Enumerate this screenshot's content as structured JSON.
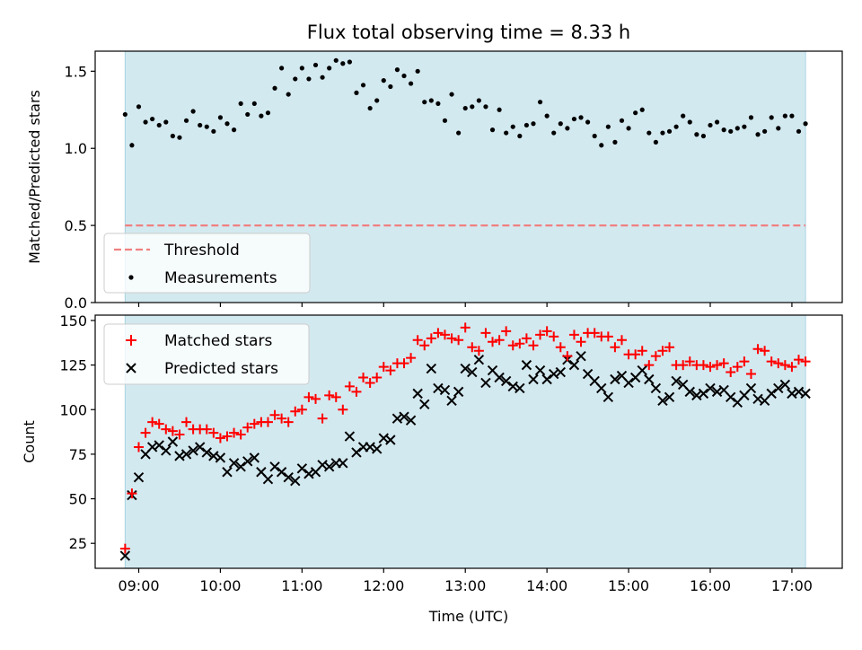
{
  "chart_data": [
    {
      "type": "scatter",
      "title": "Flux total observing time = 8.33 h",
      "xlabel": "",
      "ylabel": "Matched/Predicted stars",
      "xlim": [
        "08:28",
        "17:37"
      ],
      "ylim": [
        0,
        1.63
      ],
      "yticks": [
        0.0,
        0.5,
        1.0,
        1.5
      ],
      "ytick_labels": [
        "0.0",
        "0.5",
        "1.0",
        "1.5"
      ],
      "observing_window": [
        "08:50",
        "17:10"
      ],
      "shade_color": "#d3e9f0",
      "threshold": {
        "name": "Threshold",
        "value": 0.5,
        "color": "#f08080",
        "style": "dashed"
      },
      "legend": {
        "placement": "lower-left",
        "entries": [
          "Threshold",
          "Measurements"
        ]
      },
      "series": [
        {
          "name": "Measurements",
          "color": "#000000",
          "marker": "dot",
          "x": [
            "08:50",
            "08:55",
            "09:00",
            "09:05",
            "09:10",
            "09:15",
            "09:20",
            "09:25",
            "09:30",
            "09:35",
            "09:40",
            "09:45",
            "09:50",
            "09:55",
            "10:00",
            "10:05",
            "10:10",
            "10:15",
            "10:20",
            "10:25",
            "10:30",
            "10:35",
            "10:40",
            "10:45",
            "10:50",
            "10:55",
            "11:00",
            "11:05",
            "11:10",
            "11:15",
            "11:20",
            "11:25",
            "11:30",
            "11:35",
            "11:40",
            "11:45",
            "11:50",
            "11:55",
            "12:00",
            "12:05",
            "12:10",
            "12:15",
            "12:20",
            "12:25",
            "12:30",
            "12:35",
            "12:40",
            "12:45",
            "12:50",
            "12:55",
            "13:00",
            "13:05",
            "13:10",
            "13:15",
            "13:20",
            "13:25",
            "13:30",
            "13:35",
            "13:40",
            "13:45",
            "13:50",
            "13:55",
            "14:00",
            "14:05",
            "14:10",
            "14:15",
            "14:20",
            "14:25",
            "14:30",
            "14:35",
            "14:40",
            "14:45",
            "14:50",
            "14:55",
            "15:00",
            "15:05",
            "15:10",
            "15:15",
            "15:20",
            "15:25",
            "15:30",
            "15:35",
            "15:40",
            "15:45",
            "15:50",
            "15:55",
            "16:00",
            "16:05",
            "16:10",
            "16:15",
            "16:20",
            "16:25",
            "16:30",
            "16:35",
            "16:40",
            "16:45",
            "16:50",
            "16:55",
            "17:00",
            "17:05",
            "17:10"
          ],
          "y": [
            1.22,
            1.02,
            1.27,
            1.17,
            1.19,
            1.15,
            1.17,
            1.08,
            1.07,
            1.18,
            1.24,
            1.15,
            1.14,
            1.11,
            1.2,
            1.16,
            1.12,
            1.29,
            1.22,
            1.29,
            1.21,
            1.23,
            1.39,
            1.52,
            1.35,
            1.45,
            1.52,
            1.45,
            1.54,
            1.46,
            1.52,
            1.57,
            1.55,
            1.56,
            1.36,
            1.41,
            1.26,
            1.31,
            1.44,
            1.4,
            1.51,
            1.47,
            1.42,
            1.5,
            1.3,
            1.31,
            1.29,
            1.18,
            1.35,
            1.1,
            1.26,
            1.27,
            1.31,
            1.27,
            1.12,
            1.25,
            1.1,
            1.14,
            1.08,
            1.15,
            1.16,
            1.3,
            1.21,
            1.1,
            1.16,
            1.13,
            1.19,
            1.2,
            1.17,
            1.08,
            1.02,
            1.14,
            1.04,
            1.18,
            1.13,
            1.23,
            1.25,
            1.1,
            1.04,
            1.1,
            1.11,
            1.14,
            1.21,
            1.17,
            1.09,
            1.08,
            1.15,
            1.17,
            1.12,
            1.11,
            1.13,
            1.14,
            1.2,
            1.09,
            1.11,
            1.2,
            1.13,
            1.21,
            1.21,
            1.11,
            1.16
          ]
        }
      ]
    },
    {
      "type": "scatter",
      "title": "",
      "xlabel": "Time (UTC)",
      "ylabel": "Count",
      "xlim": [
        "08:28",
        "17:37"
      ],
      "ylim": [
        11,
        153
      ],
      "yticks": [
        25,
        50,
        75,
        100,
        125,
        150
      ],
      "ytick_labels": [
        "25",
        "50",
        "75",
        "100",
        "125",
        "150"
      ],
      "xticks": [
        "09:00",
        "10:00",
        "11:00",
        "12:00",
        "13:00",
        "14:00",
        "15:00",
        "16:00",
        "17:00"
      ],
      "xtick_labels": [
        "09:00",
        "10:00",
        "11:00",
        "12:00",
        "13:00",
        "14:00",
        "15:00",
        "16:00",
        "17:00"
      ],
      "observing_window": [
        "08:50",
        "17:10"
      ],
      "shade_color": "#d3e9f0",
      "legend": {
        "placement": "top-left",
        "entries": [
          "Matched stars",
          "Predicted stars"
        ]
      },
      "series": [
        {
          "name": "Matched stars",
          "color": "#ff0000",
          "marker": "plus",
          "x": [
            "08:50",
            "08:55",
            "09:00",
            "09:05",
            "09:10",
            "09:15",
            "09:20",
            "09:25",
            "09:30",
            "09:35",
            "09:40",
            "09:45",
            "09:50",
            "09:55",
            "10:00",
            "10:05",
            "10:10",
            "10:15",
            "10:20",
            "10:25",
            "10:30",
            "10:35",
            "10:40",
            "10:45",
            "10:50",
            "10:55",
            "11:00",
            "11:05",
            "11:10",
            "11:15",
            "11:20",
            "11:25",
            "11:30",
            "11:35",
            "11:40",
            "11:45",
            "11:50",
            "11:55",
            "12:00",
            "12:05",
            "12:10",
            "12:15",
            "12:20",
            "12:25",
            "12:30",
            "12:35",
            "12:40",
            "12:45",
            "12:50",
            "12:55",
            "13:00",
            "13:05",
            "13:10",
            "13:15",
            "13:20",
            "13:25",
            "13:30",
            "13:35",
            "13:40",
            "13:45",
            "13:50",
            "13:55",
            "14:00",
            "14:05",
            "14:10",
            "14:15",
            "14:20",
            "14:25",
            "14:30",
            "14:35",
            "14:40",
            "14:45",
            "14:50",
            "14:55",
            "15:00",
            "15:05",
            "15:10",
            "15:15",
            "15:20",
            "15:25",
            "15:30",
            "15:35",
            "15:40",
            "15:45",
            "15:50",
            "15:55",
            "16:00",
            "16:05",
            "16:10",
            "16:15",
            "16:20",
            "16:25",
            "16:30",
            "16:35",
            "16:40",
            "16:45",
            "16:50",
            "16:55",
            "17:00",
            "17:05",
            "17:10"
          ],
          "y": [
            22,
            53,
            79,
            87,
            93,
            92,
            89,
            88,
            86,
            93,
            89,
            89,
            89,
            87,
            84,
            85,
            87,
            86,
            90,
            92,
            93,
            93,
            97,
            95,
            93,
            99,
            100,
            107,
            106,
            95,
            108,
            107,
            100,
            113,
            110,
            118,
            115,
            118,
            124,
            122,
            126,
            126,
            129,
            139,
            136,
            140,
            143,
            142,
            140,
            139,
            146,
            135,
            133,
            143,
            138,
            139,
            144,
            136,
            137,
            140,
            136,
            142,
            144,
            141,
            135,
            130,
            142,
            138,
            143,
            143,
            141,
            141,
            135,
            139,
            131,
            131,
            133,
            125,
            130,
            133,
            135,
            125,
            125,
            127,
            125,
            125,
            124,
            125,
            126,
            121,
            124,
            127,
            120,
            134,
            133,
            127,
            126,
            125,
            124,
            128,
            127
          ]
        },
        {
          "name": "Predicted stars",
          "color": "#000000",
          "marker": "x",
          "x": [
            "08:50",
            "08:55",
            "09:00",
            "09:05",
            "09:10",
            "09:15",
            "09:20",
            "09:25",
            "09:30",
            "09:35",
            "09:40",
            "09:45",
            "09:50",
            "09:55",
            "10:00",
            "10:05",
            "10:10",
            "10:15",
            "10:20",
            "10:25",
            "10:30",
            "10:35",
            "10:40",
            "10:45",
            "10:50",
            "10:55",
            "11:00",
            "11:05",
            "11:10",
            "11:15",
            "11:20",
            "11:25",
            "11:30",
            "11:35",
            "11:40",
            "11:45",
            "11:50",
            "11:55",
            "12:00",
            "12:05",
            "12:10",
            "12:15",
            "12:20",
            "12:25",
            "12:30",
            "12:35",
            "12:40",
            "12:45",
            "12:50",
            "12:55",
            "13:00",
            "13:05",
            "13:10",
            "13:15",
            "13:20",
            "13:25",
            "13:30",
            "13:35",
            "13:40",
            "13:45",
            "13:50",
            "13:55",
            "14:00",
            "14:05",
            "14:10",
            "14:15",
            "14:20",
            "14:25",
            "14:30",
            "14:35",
            "14:40",
            "14:45",
            "14:50",
            "14:55",
            "15:00",
            "15:05",
            "15:10",
            "15:15",
            "15:20",
            "15:25",
            "15:30",
            "15:35",
            "15:40",
            "15:45",
            "15:50",
            "15:55",
            "16:00",
            "16:05",
            "16:10",
            "16:15",
            "16:20",
            "16:25",
            "16:30",
            "16:35",
            "16:40",
            "16:45",
            "16:50",
            "16:55",
            "17:00",
            "17:05",
            "17:10"
          ],
          "y": [
            18,
            52,
            62,
            75,
            79,
            80,
            77,
            82,
            74,
            75,
            77,
            79,
            76,
            74,
            73,
            65,
            70,
            68,
            71,
            73,
            65,
            61,
            68,
            65,
            62,
            60,
            67,
            64,
            65,
            69,
            68,
            70,
            70,
            85,
            76,
            79,
            79,
            78,
            84,
            83,
            95,
            96,
            94,
            109,
            103,
            123,
            112,
            111,
            105,
            110,
            123,
            121,
            128,
            115,
            122,
            118,
            116,
            113,
            112,
            125,
            117,
            122,
            117,
            120,
            121,
            128,
            125,
            130,
            120,
            116,
            112,
            107,
            117,
            119,
            115,
            118,
            122,
            117,
            112,
            105,
            107,
            116,
            114,
            110,
            108,
            109,
            112,
            110,
            111,
            107,
            104,
            108,
            112,
            106,
            105,
            109,
            112,
            114,
            109,
            110,
            109
          ]
        }
      ]
    }
  ]
}
